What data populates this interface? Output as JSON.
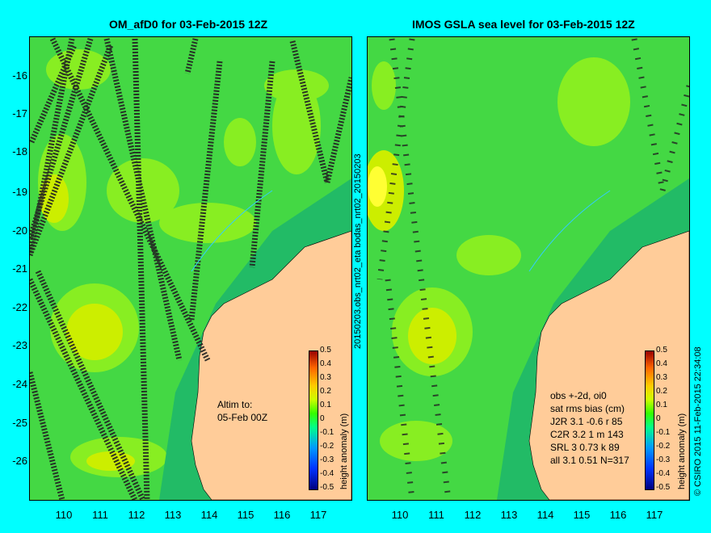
{
  "panels": {
    "left": {
      "title": "OM_afD0 for 03-Feb-2015 12Z",
      "note_line1": "Altim to:",
      "note_line2": "05-Feb 00Z"
    },
    "right": {
      "title": "IMOS GSLA sea level  for 03-Feb-2015 12Z",
      "stats": [
        "obs +-2d, oi0",
        "sat rms bias (cm)",
        "J2R   3.1 -0.6 r 85",
        "C2R   3.2 1 m 143",
        "SRL   3 0.73 k 89",
        "all   3.1 0.51 N=317"
      ]
    }
  },
  "axes": {
    "lat_labels": [
      "-16",
      "-17",
      "-18",
      "-19",
      "-20",
      "-21",
      "-22",
      "-23",
      "-24",
      "-25",
      "-26"
    ],
    "lon_labels": [
      "110",
      "111",
      "112",
      "113",
      "114",
      "115",
      "116",
      "117"
    ]
  },
  "side_labels": {
    "middle": "20150203.obs_nrt02_eta    bodas_nrt02_20150203",
    "right": "© CSIRO 2015   11-Feb-2015 22:34:08"
  },
  "colorbar": {
    "ticks": [
      "0.5",
      "0.4",
      "0.3",
      "0.2",
      "0.1",
      "0",
      "-0.1",
      "-0.2",
      "-0.3",
      "-0.4",
      "-0.5"
    ],
    "unit": "height anomaly (m)"
  },
  "colors": {
    "background": "#00ffff",
    "sea_base": "#44d844",
    "land": "#ffcc99"
  }
}
